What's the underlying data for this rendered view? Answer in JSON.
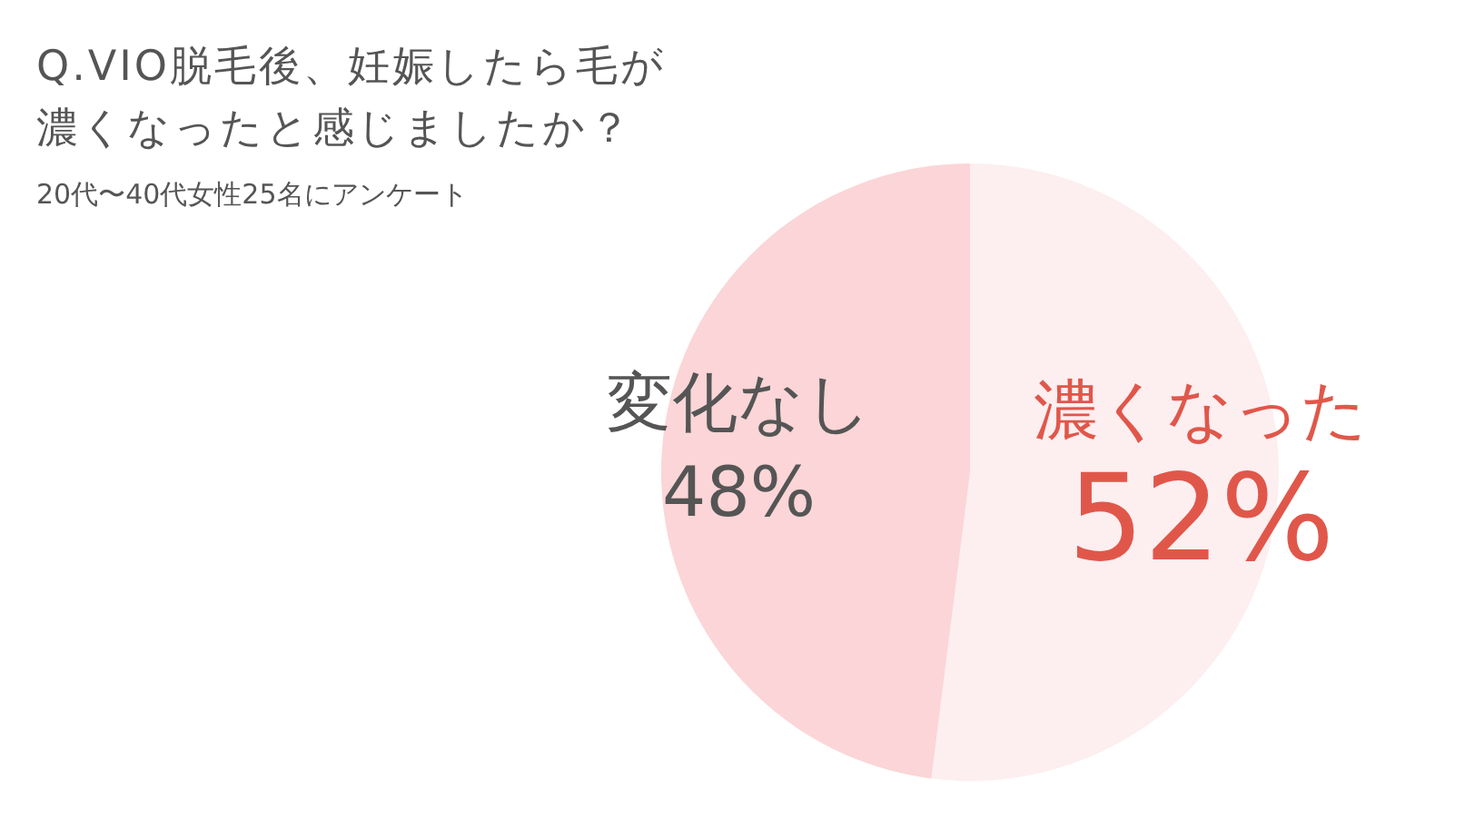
{
  "chart_data": {
    "type": "pie",
    "title": "Q.VIO脱毛後、妊娠したら毛が濃くなったと感じましたか？",
    "subtitle": "20代〜40代女性25名にアンケート",
    "categories": [
      "濃くなった",
      "変化なし"
    ],
    "values": [
      52,
      48
    ],
    "colors": [
      "#fdeef0",
      "#fbd5d7"
    ],
    "value_labels": [
      "52%",
      "48%"
    ]
  }
}
